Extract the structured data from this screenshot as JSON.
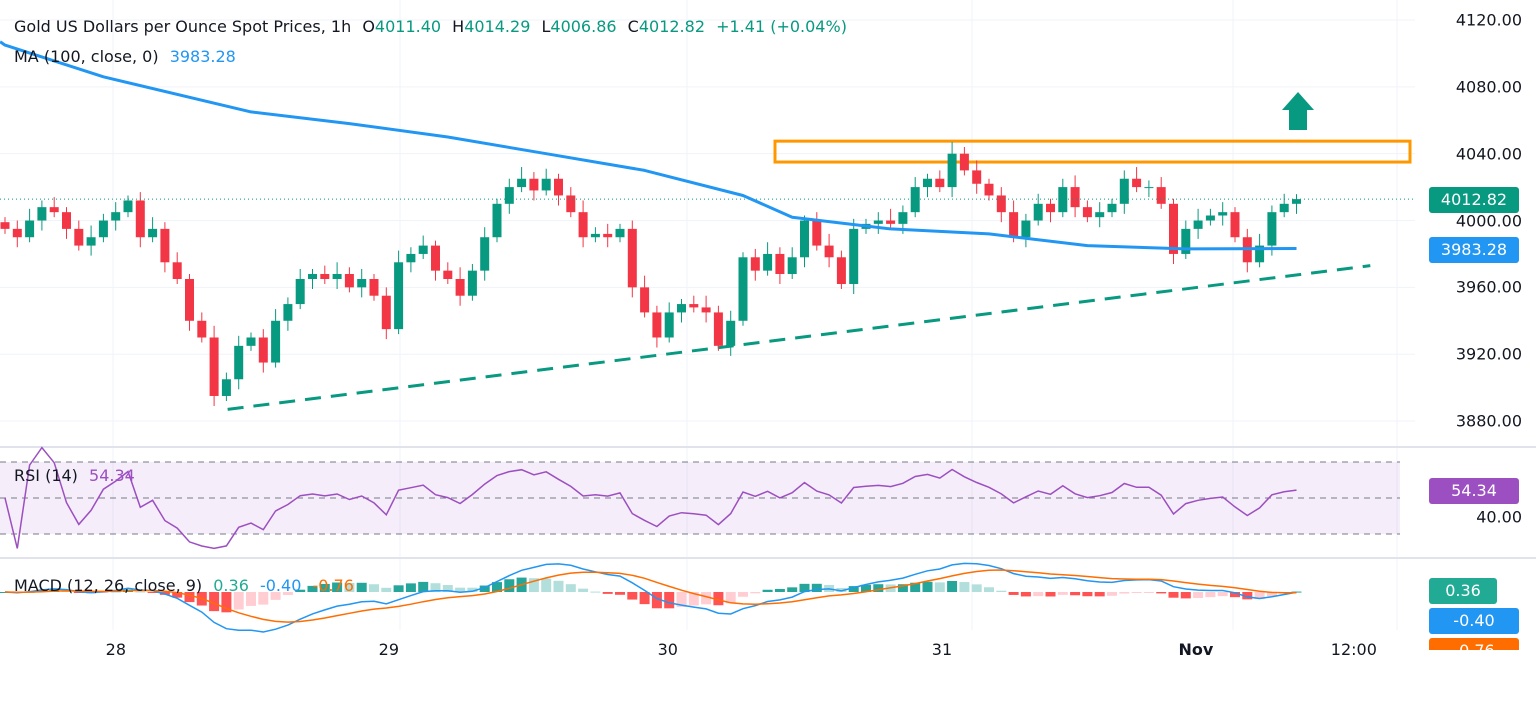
{
  "header": {
    "title": "Gold US Dollars per Ounce Spot Prices, 1h",
    "o_label": "O",
    "o": "4011.40",
    "h_label": "H",
    "h": "4014.29",
    "l_label": "L",
    "l": "4006.86",
    "c_label": "C",
    "c": "4012.82",
    "change": "+1.41 (+0.04%)"
  },
  "ma": {
    "label": "MA (100, close, 0)",
    "value": "3983.28"
  },
  "rsi": {
    "label": "RSI (14)",
    "value": "54.34",
    "axis_label": "40.00",
    "levels": [
      70,
      50,
      30
    ]
  },
  "macd": {
    "label": "MACD (12, 26, close, 9)",
    "hist": "0.36",
    "macd": "-0.40",
    "signal": "-0.76"
  },
  "colors": {
    "up": "#089981",
    "down": "#f23645",
    "ma": "#2196f3",
    "rsi": "#9c4fc0",
    "macd": "#2196f3",
    "signal": "#ff6d00",
    "box": "#ff9800",
    "trend": "#089981",
    "arrow": "#089981"
  },
  "chart_data": {
    "type": "candlestick",
    "title": "Gold US Dollars per Ounce Spot Prices, 1h",
    "ylim": [
      3860,
      4130
    ],
    "y_ticks": [
      "4120.00",
      "4080.00",
      "4040.00",
      "4000.00",
      "3960.00",
      "3920.00",
      "3880.00"
    ],
    "y_tick_values": [
      4120,
      4080,
      4040,
      4000,
      3960,
      3920,
      3880
    ],
    "x_ticks": [
      {
        "label": "28",
        "bar": 9
      },
      {
        "label": "29",
        "bar": 32
      },
      {
        "label": "30",
        "bar": 55.5
      },
      {
        "label": "31",
        "bar": 78.6
      },
      {
        "label": "Nov",
        "bar": 100
      },
      {
        "label": "12:00",
        "bar": 113.3
      }
    ],
    "close": [
      3995,
      3990,
      4000,
      4008,
      4005,
      3995,
      3985,
      3990,
      4000,
      4005,
      4012,
      3990,
      3995,
      3975,
      3965,
      3940,
      3930,
      3895,
      3905,
      3925,
      3930,
      3915,
      3940,
      3950,
      3965,
      3968,
      3965,
      3968,
      3960,
      3965,
      3955,
      3935,
      3975,
      3980,
      3985,
      3970,
      3965,
      3955,
      3970,
      3990,
      4010,
      4020,
      4025,
      4018,
      4025,
      4015,
      4005,
      3990,
      3992,
      3990,
      3995,
      3960,
      3945,
      3930,
      3945,
      3950,
      3948,
      3945,
      3925,
      3940,
      3978,
      3970,
      3980,
      3968,
      3978,
      4000,
      3985,
      3978,
      3962,
      3995,
      3998,
      4000,
      3998,
      4005,
      4020,
      4025,
      4020,
      4040,
      4030,
      4022,
      4015,
      4005,
      3990,
      4000,
      4010,
      4005,
      4020,
      4008,
      4002,
      4005,
      4010,
      4025,
      4020,
      4020,
      4010,
      3980,
      3995,
      4000,
      4003,
      4005,
      3990,
      3975,
      3985,
      4005,
      4010,
      4012.82
    ],
    "ma_100": [
      [
        0,
        4105
      ],
      [
        8,
        4086
      ],
      [
        20,
        4065
      ],
      [
        28,
        4058
      ],
      [
        36,
        4050
      ],
      [
        44,
        4040
      ],
      [
        52,
        4030
      ],
      [
        60,
        4015
      ],
      [
        64,
        4002
      ],
      [
        72,
        3995
      ],
      [
        80,
        3992
      ],
      [
        88,
        3985
      ],
      [
        96,
        3983
      ],
      [
        105,
        3983.28
      ]
    ],
    "last_price": "4012.82",
    "ma_last": "3983.28",
    "resistance_zone": [
      4035,
      4047.5
    ],
    "trendline": [
      [
        18.1,
        3887
      ],
      [
        111,
        3973
      ]
    ],
    "arrow": "up"
  }
}
